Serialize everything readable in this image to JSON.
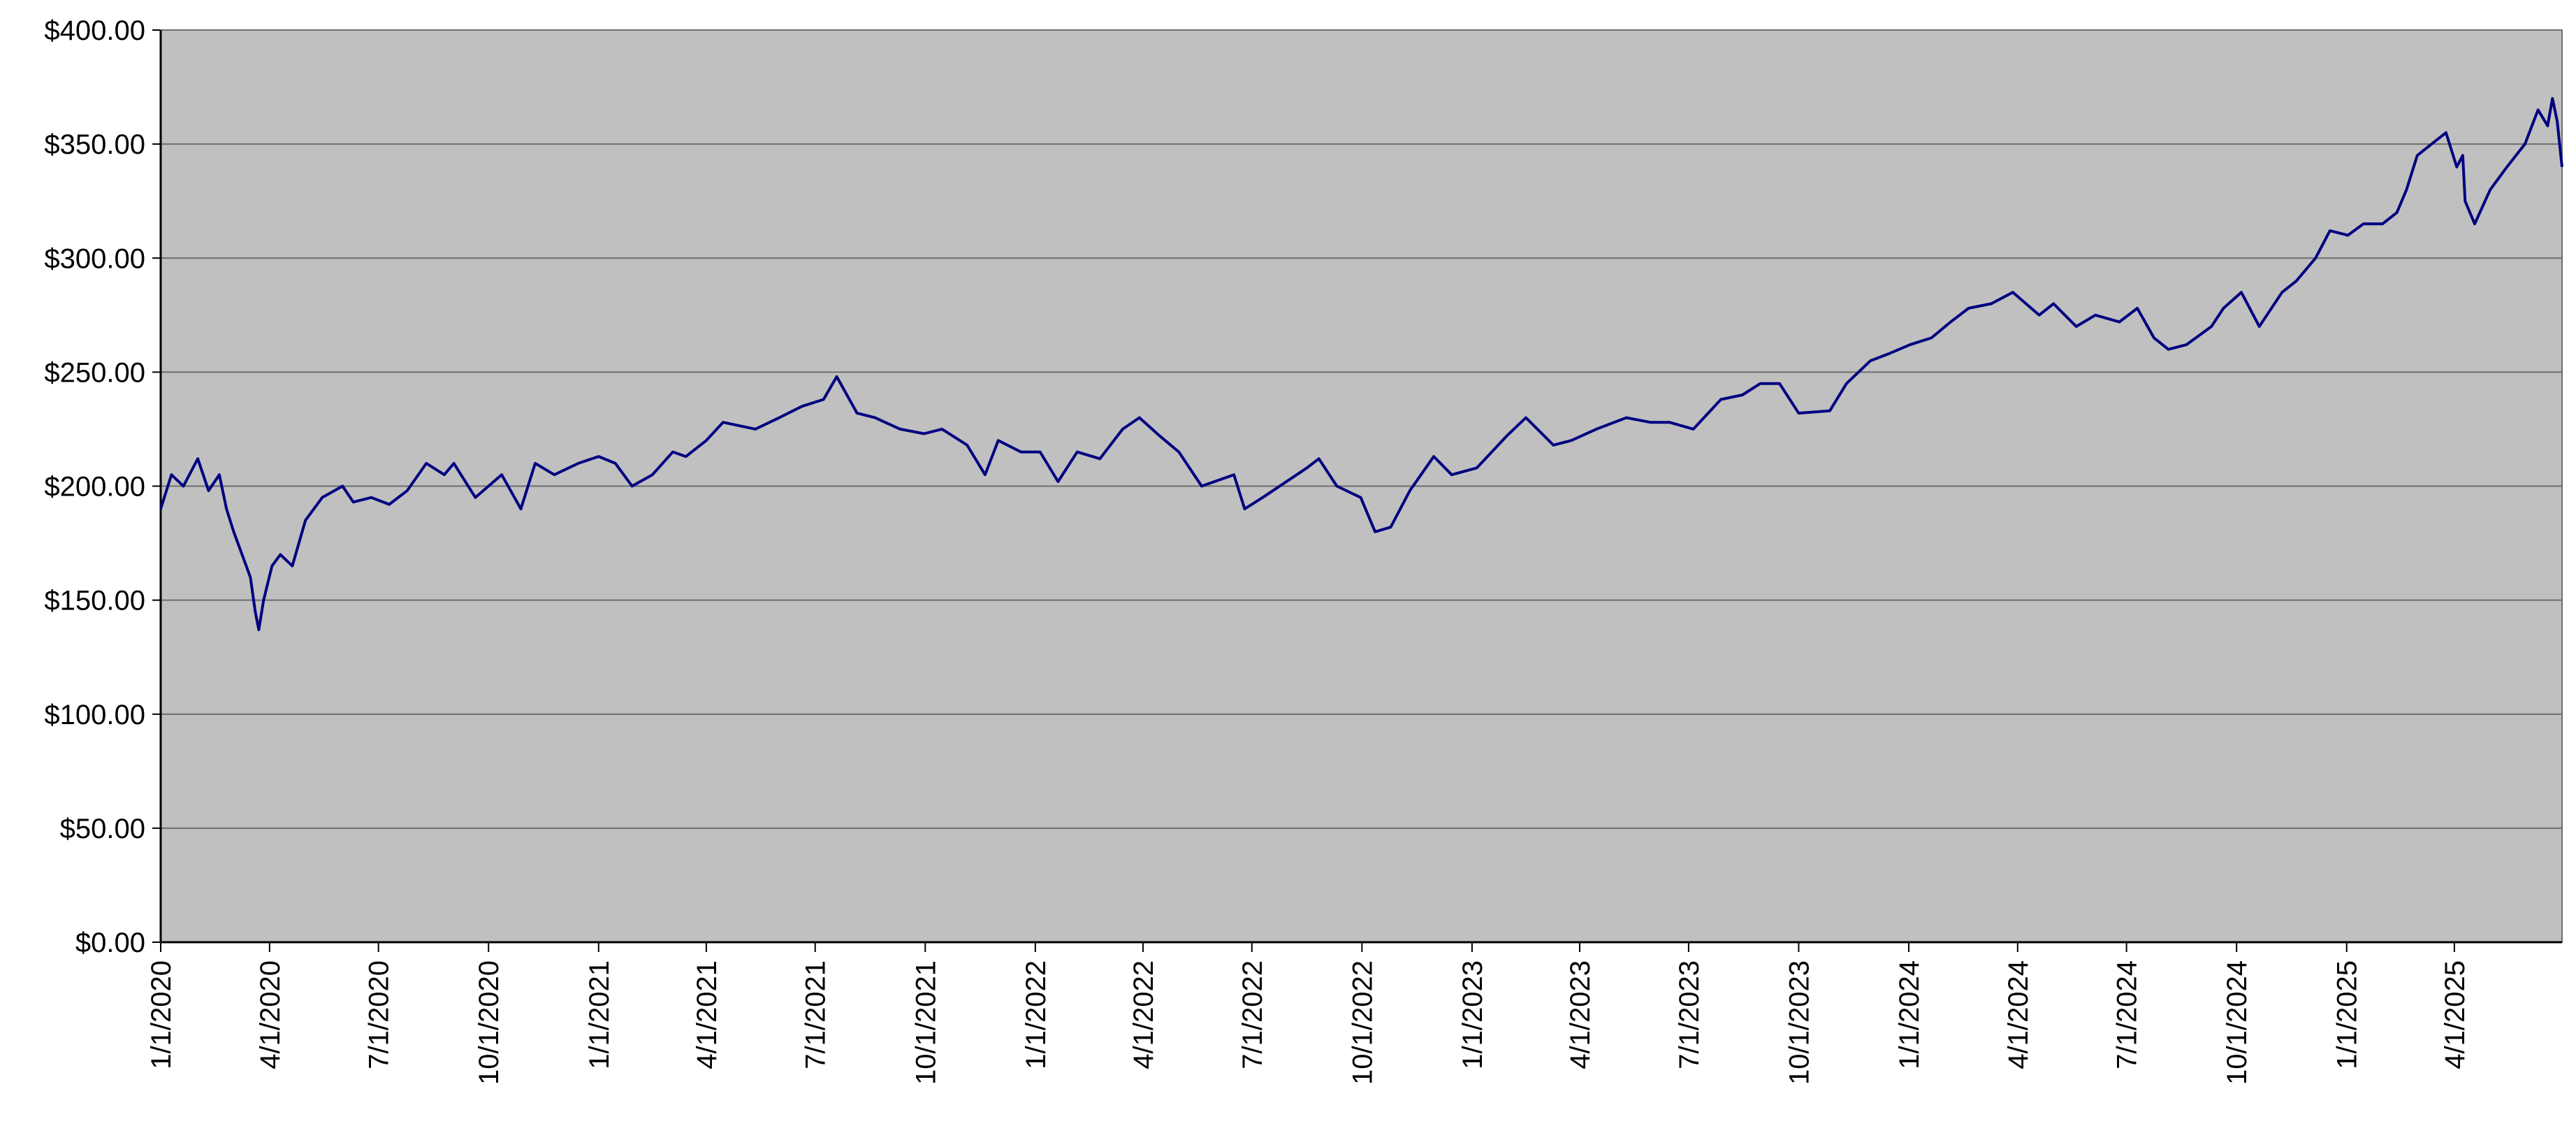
{
  "chart_data": {
    "type": "line",
    "title": "",
    "xlabel": "",
    "ylabel": "",
    "ylim": [
      0,
      400
    ],
    "xlim": [
      "2020-01-01",
      "2025-06-30"
    ],
    "grid": "horizontal",
    "legend": "none",
    "colors": {
      "plot_background": "#c0c0c0",
      "line": "#000080",
      "gridline": "#6e6e6e",
      "axis": "#000000"
    },
    "y_ticks": [
      {
        "value": 0,
        "label": "$0.00"
      },
      {
        "value": 50,
        "label": "$50.00"
      },
      {
        "value": 100,
        "label": "$100.00"
      },
      {
        "value": 150,
        "label": "$150.00"
      },
      {
        "value": 200,
        "label": "$200.00"
      },
      {
        "value": 250,
        "label": "$250.00"
      },
      {
        "value": 300,
        "label": "$300.00"
      },
      {
        "value": 350,
        "label": "$350.00"
      },
      {
        "value": 400,
        "label": "$400.00"
      }
    ],
    "x_ticks": [
      {
        "value": "2020-01-01",
        "label": "1/1/2020"
      },
      {
        "value": "2020-04-01",
        "label": "4/1/2020"
      },
      {
        "value": "2020-07-01",
        "label": "7/1/2020"
      },
      {
        "value": "2020-10-01",
        "label": "10/1/2020"
      },
      {
        "value": "2021-01-01",
        "label": "1/1/2021"
      },
      {
        "value": "2021-04-01",
        "label": "4/1/2021"
      },
      {
        "value": "2021-07-01",
        "label": "7/1/2021"
      },
      {
        "value": "2021-10-01",
        "label": "10/1/2021"
      },
      {
        "value": "2022-01-01",
        "label": "1/1/2022"
      },
      {
        "value": "2022-04-01",
        "label": "4/1/2022"
      },
      {
        "value": "2022-07-01",
        "label": "7/1/2022"
      },
      {
        "value": "2022-10-01",
        "label": "10/1/2022"
      },
      {
        "value": "2023-01-01",
        "label": "1/1/2023"
      },
      {
        "value": "2023-04-01",
        "label": "4/1/2023"
      },
      {
        "value": "2023-07-01",
        "label": "7/1/2023"
      },
      {
        "value": "2023-10-01",
        "label": "10/1/2023"
      },
      {
        "value": "2024-01-01",
        "label": "1/1/2024"
      },
      {
        "value": "2024-04-01",
        "label": "4/1/2024"
      },
      {
        "value": "2024-07-01",
        "label": "7/1/2024"
      },
      {
        "value": "2024-10-01",
        "label": "10/1/2024"
      },
      {
        "value": "2025-01-01",
        "label": "1/1/2025"
      },
      {
        "value": "2025-04-01",
        "label": "4/1/2025"
      }
    ],
    "series": [
      {
        "x": [
          "2020-01-01",
          "2020-01-10",
          "2020-01-20",
          "2020-02-01",
          "2020-02-10",
          "2020-02-19",
          "2020-02-25",
          "2020-03-02",
          "2020-03-09",
          "2020-03-16",
          "2020-03-20",
          "2020-03-23",
          "2020-03-27",
          "2020-04-03",
          "2020-04-10",
          "2020-04-20",
          "2020-05-01",
          "2020-05-15",
          "2020-06-01",
          "2020-06-10",
          "2020-06-25",
          "2020-07-10",
          "2020-07-25",
          "2020-08-10",
          "2020-08-25",
          "2020-09-02",
          "2020-09-20",
          "2020-10-01",
          "2020-10-12",
          "2020-10-28",
          "2020-11-09",
          "2020-11-25",
          "2020-12-15",
          "2021-01-01",
          "2021-01-15",
          "2021-01-29",
          "2021-02-15",
          "2021-03-04",
          "2021-03-15",
          "2021-04-01",
          "2021-04-15",
          "2021-05-12",
          "2021-06-01",
          "2021-06-20",
          "2021-07-08",
          "2021-07-19",
          "2021-08-05",
          "2021-08-20",
          "2021-09-10",
          "2021-09-30",
          "2021-10-15",
          "2021-11-05",
          "2021-11-20",
          "2021-12-01",
          "2021-12-20",
          "2022-01-05",
          "2022-01-20",
          "2022-02-05",
          "2022-02-24",
          "2022-03-15",
          "2022-03-29",
          "2022-04-15",
          "2022-05-01",
          "2022-05-20",
          "2022-06-16",
          "2022-06-25",
          "2022-07-10",
          "2022-08-16",
          "2022-08-26",
          "2022-09-10",
          "2022-09-30",
          "2022-10-12",
          "2022-10-25",
          "2022-11-10",
          "2022-11-30",
          "2022-12-15",
          "2023-01-05",
          "2023-01-30",
          "2023-02-15",
          "2023-03-10",
          "2023-03-25",
          "2023-04-15",
          "2023-05-10",
          "2023-05-30",
          "2023-06-15",
          "2023-07-05",
          "2023-07-28",
          "2023-08-15",
          "2023-08-30",
          "2023-09-15",
          "2023-10-01",
          "2023-10-27",
          "2023-11-10",
          "2023-11-30",
          "2023-12-15",
          "2024-01-02",
          "2024-01-20",
          "2024-02-05",
          "2024-02-20",
          "2024-03-10",
          "2024-03-28",
          "2024-04-19",
          "2024-05-01",
          "2024-05-20",
          "2024-06-05",
          "2024-06-25",
          "2024-07-10",
          "2024-07-24",
          "2024-08-05",
          "2024-08-20",
          "2024-09-10",
          "2024-09-20",
          "2024-10-05",
          "2024-10-20",
          "2024-11-08",
          "2024-11-20",
          "2024-12-06",
          "2024-12-18",
          "2025-01-02",
          "2025-01-15",
          "2025-01-31",
          "2025-02-12",
          "2025-02-20",
          "2025-03-01",
          "2025-03-13",
          "2025-03-25",
          "2025-04-03",
          "2025-04-08",
          "2025-04-10",
          "2025-04-18",
          "2025-05-01",
          "2025-05-15",
          "2025-05-30",
          "2025-06-10",
          "2025-06-18",
          "2025-06-22",
          "2025-06-26",
          "2025-06-30"
        ],
        "y": [
          190,
          205,
          200,
          212,
          198,
          205,
          190,
          180,
          170,
          160,
          145,
          137,
          150,
          165,
          170,
          165,
          185,
          195,
          200,
          193,
          195,
          192,
          198,
          210,
          205,
          210,
          195,
          200,
          205,
          190,
          210,
          205,
          210,
          213,
          210,
          200,
          205,
          215,
          213,
          220,
          228,
          225,
          230,
          235,
          238,
          248,
          232,
          230,
          225,
          223,
          225,
          218,
          205,
          220,
          215,
          215,
          202,
          215,
          212,
          225,
          230,
          222,
          215,
          200,
          205,
          190,
          195,
          208,
          212,
          200,
          195,
          180,
          182,
          198,
          213,
          205,
          208,
          222,
          230,
          218,
          220,
          225,
          230,
          228,
          228,
          225,
          238,
          240,
          245,
          245,
          232,
          233,
          245,
          255,
          258,
          262,
          265,
          272,
          278,
          280,
          285,
          275,
          280,
          270,
          275,
          272,
          278,
          265,
          260,
          262,
          270,
          278,
          285,
          270,
          285,
          290,
          300,
          312,
          310,
          315,
          315,
          320,
          330,
          345,
          350,
          355,
          340,
          345,
          325,
          315,
          330,
          340,
          350,
          365,
          358,
          370,
          360,
          340
        ]
      }
    ]
  }
}
